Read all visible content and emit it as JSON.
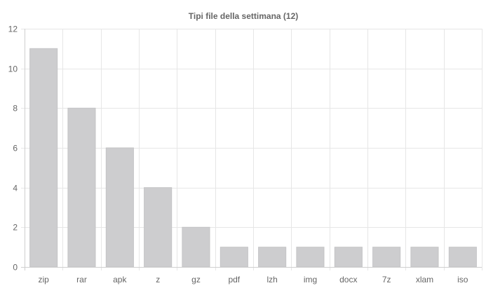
{
  "chart_data": {
    "type": "bar",
    "title": "Tipi file della settimana (12)",
    "xlabel": "",
    "ylabel": "",
    "categories": [
      "zip",
      "rar",
      "apk",
      "z",
      "gz",
      "pdf",
      "lzh",
      "img",
      "docx",
      "7z",
      "xlam",
      "iso"
    ],
    "series": [
      {
        "values": [
          11,
          8,
          6,
          4,
          2,
          1,
          1,
          1,
          1,
          1,
          1,
          1
        ]
      }
    ],
    "ylim": [
      0,
      12
    ],
    "yticks": [
      0,
      2,
      4,
      6,
      8,
      10,
      12
    ],
    "grid": true,
    "legend": "none",
    "colors": {
      "bar_fill": "#cdcdcf",
      "bar_stroke": "#c4c4c6",
      "grid": "#e6e6e6",
      "axis": "#cfcfcf",
      "text": "#666666"
    }
  }
}
